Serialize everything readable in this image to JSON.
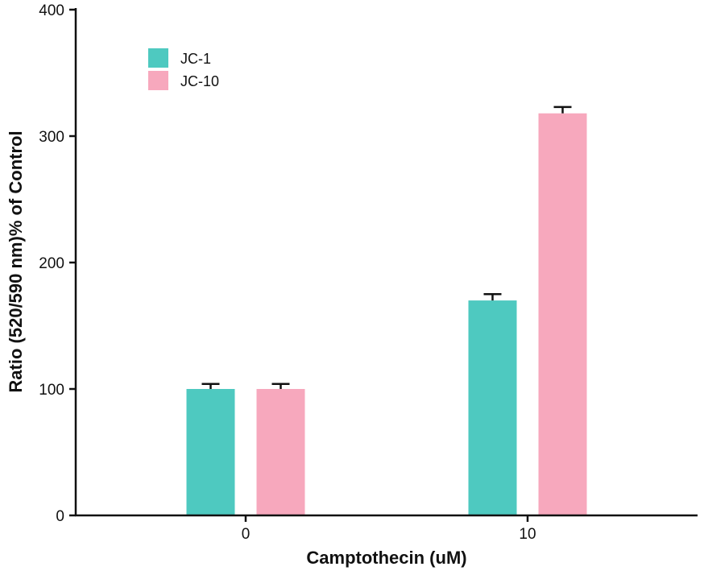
{
  "chart_data": {
    "type": "bar",
    "categories": [
      "0",
      "10"
    ],
    "series": [
      {
        "name": "JC-1",
        "color": "#4ec9c0",
        "values": [
          100,
          170
        ],
        "errors": [
          4,
          5
        ]
      },
      {
        "name": "JC-10",
        "color": "#f7a8bd",
        "values": [
          100,
          318
        ],
        "errors": [
          4,
          5
        ]
      }
    ],
    "xlabel": "Camptothecin (uM)",
    "ylabel": "Ratio (520/590 nm)% of Control",
    "ylim": [
      0,
      400
    ],
    "yticks": [
      "0",
      "100",
      "200",
      "300",
      "400"
    ],
    "grid": false,
    "legend_position": "top-left"
  }
}
